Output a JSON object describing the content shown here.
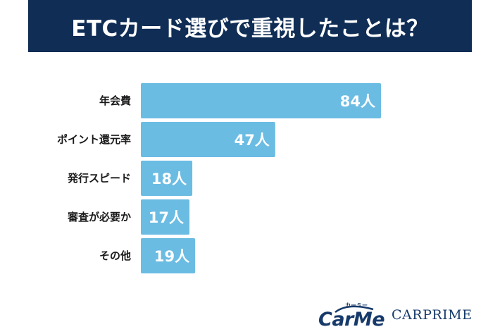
{
  "title": "ETCカード選びで重視したことは？",
  "chart_data": {
    "type": "bar",
    "orientation": "horizontal",
    "categories": [
      "年会費",
      "ポイント還元率",
      "発行スピード",
      "審査が必要か",
      "その他"
    ],
    "values": [
      84,
      47,
      18,
      17,
      19
    ],
    "value_labels": [
      "84人",
      "47人",
      "18人",
      "17人",
      "19人"
    ],
    "unit": "人",
    "bar_color": "#6bbce3",
    "grid": false
  },
  "logos": {
    "carme": "CarMe",
    "carme_kana": "カーミー",
    "carprime": "CARPRIME"
  }
}
